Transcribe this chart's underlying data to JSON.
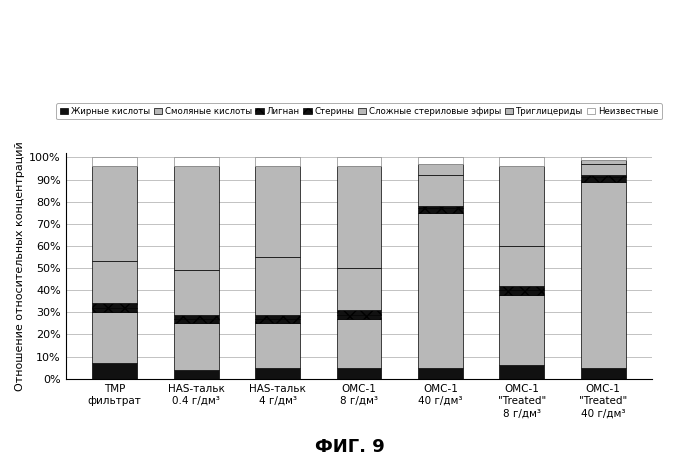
{
  "categories": [
    "TMP\nфильтрат",
    "HAS-тальк\n0.4 г/дм³",
    "HAS-тальк\n4 г/дм³",
    "ОМС-1\n8 г/дм³",
    "ОМС-1\n40 г/дм³",
    "ОМС-1\n\"Treated\"\n8 г/дм³",
    "ОМС-1\n\"Treated\"\n40 г/дм³"
  ],
  "series": {
    "Жирные кислоты": [
      7,
      4,
      5,
      5,
      5,
      6,
      5
    ],
    "Смоляные кислоты": [
      23,
      21,
      20,
      22,
      70,
      32,
      84
    ],
    "Лигнан": [
      2,
      2,
      2,
      2,
      2,
      2,
      2
    ],
    "Стерины": [
      2,
      2,
      2,
      2,
      1,
      2,
      1
    ],
    "Сложные стериловые эфиры": [
      19,
      20,
      26,
      19,
      14,
      18,
      5
    ],
    "Триглицериды": [
      43,
      47,
      41,
      46,
      5,
      36,
      2
    ],
    "Неизвестные": [
      4,
      4,
      4,
      4,
      3,
      4,
      1
    ]
  },
  "colors": [
    "#111111",
    "#b8b8b8",
    "#111111",
    "#111111",
    "#b8b8b8",
    "#b8b8b8",
    "#ffffff"
  ],
  "hatch": [
    null,
    null,
    "xx",
    "xx",
    null,
    null,
    null
  ],
  "ylabel": "Отношение относительных концентраций",
  "fig_title": "ФИГ. 9",
  "legend_labels": [
    "Жирные кислоты",
    "Смоляные кислоты",
    "Лигнан",
    "Стерины",
    "Сложные стериловые эфиры",
    "Триглицериды",
    "Неизвестные"
  ],
  "bar_width": 0.55,
  "figsize": [
    6.99,
    4.61
  ],
  "dpi": 100,
  "yticks": [
    0,
    10,
    20,
    30,
    40,
    50,
    60,
    70,
    80,
    90,
    100
  ],
  "ytick_labels": [
    "0%",
    "10%",
    "20%",
    "30%",
    "40%",
    "50%",
    "60%",
    "70%",
    "80%",
    "90%",
    "100%"
  ]
}
